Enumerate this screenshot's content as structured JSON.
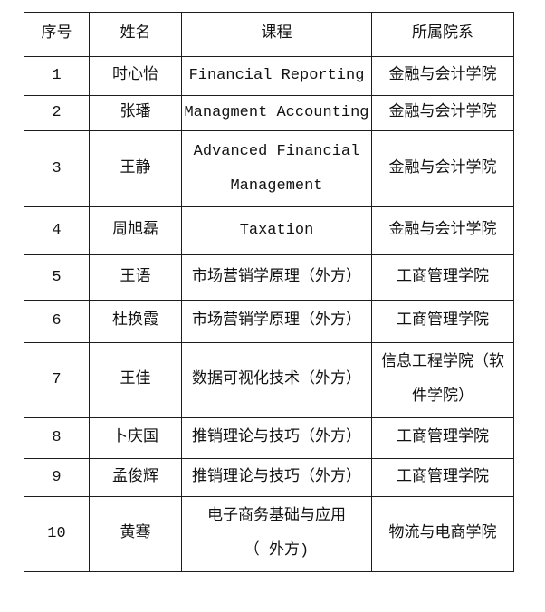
{
  "table": {
    "columns": [
      {
        "key": "no",
        "label": "序号"
      },
      {
        "key": "name",
        "label": "姓名"
      },
      {
        "key": "course",
        "label": "课程"
      },
      {
        "key": "dept",
        "label": "所属院系"
      }
    ],
    "rows": [
      {
        "no": "1",
        "name": "时心怡",
        "course": [
          "Financial Reporting"
        ],
        "dept": [
          "金融与会计学院"
        ]
      },
      {
        "no": "2",
        "name": "张璠",
        "course": [
          "Managment Accounting"
        ],
        "dept": [
          "金融与会计学院"
        ]
      },
      {
        "no": "3",
        "name": "王静",
        "course": [
          "Advanced Financial",
          "Management"
        ],
        "dept": [
          "金融与会计学院"
        ]
      },
      {
        "no": "4",
        "name": "周旭磊",
        "course": [
          "Taxation"
        ],
        "dept": [
          "金融与会计学院"
        ]
      },
      {
        "no": "5",
        "name": "王语",
        "course": [
          "市场营销学原理（外方）"
        ],
        "dept": [
          "工商管理学院"
        ]
      },
      {
        "no": "6",
        "name": "杜换霞",
        "course": [
          "市场营销学原理（外方）"
        ],
        "dept": [
          "工商管理学院"
        ]
      },
      {
        "no": "7",
        "name": "王佳",
        "course": [
          "数据可视化技术（外方）"
        ],
        "dept": [
          "信息工程学院（软",
          "件学院）"
        ]
      },
      {
        "no": "8",
        "name": "卜庆国",
        "course": [
          "推销理论与技巧（外方）"
        ],
        "dept": [
          "工商管理学院"
        ]
      },
      {
        "no": "9",
        "name": "孟俊辉",
        "course": [
          "推销理论与技巧（外方）"
        ],
        "dept": [
          "工商管理学院"
        ]
      },
      {
        "no": "10",
        "name": "黄骞",
        "course": [
          "电子商务基础与应用",
          "（ 外方)"
        ],
        "dept": [
          "物流与电商学院"
        ]
      }
    ]
  },
  "colors": {
    "background": "#ffffff",
    "border": "#1c1c1c",
    "text": "#121212"
  }
}
